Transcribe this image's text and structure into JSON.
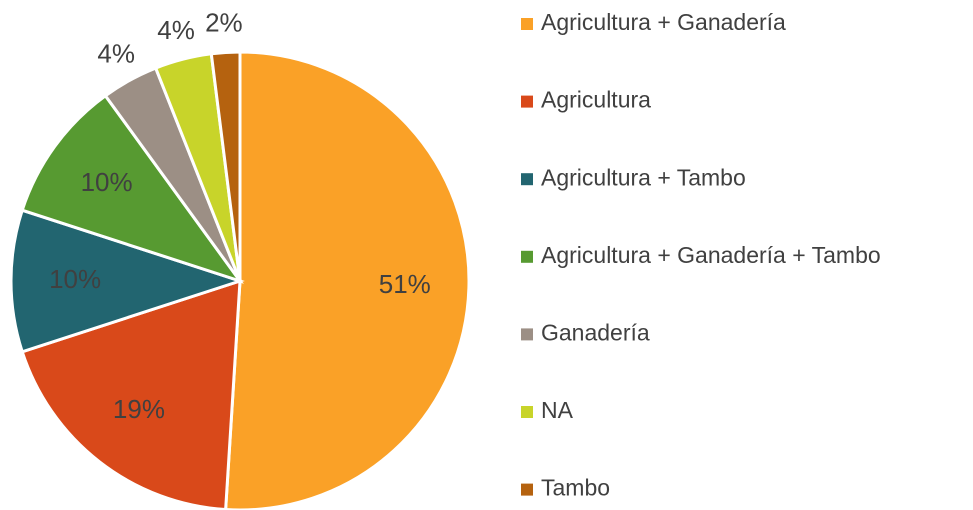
{
  "chart_data": {
    "type": "pie",
    "categories": [
      "Agricultura + Ganadería",
      "Agricultura",
      "Agricultura + Tambo",
      "Agricultura + Ganadería + Tambo",
      "Ganadería",
      "NA",
      "Tambo"
    ],
    "values": [
      51,
      19,
      10,
      10,
      4,
      4,
      2
    ],
    "value_labels": [
      "51%",
      "19%",
      "10%",
      "10%",
      "4%",
      "4%",
      "2%"
    ],
    "colors": [
      "#FAA127",
      "#D9491A",
      "#226570",
      "#579A31",
      "#9C8F85",
      "#C8D42A",
      "#B5620F"
    ],
    "legend": "right"
  }
}
